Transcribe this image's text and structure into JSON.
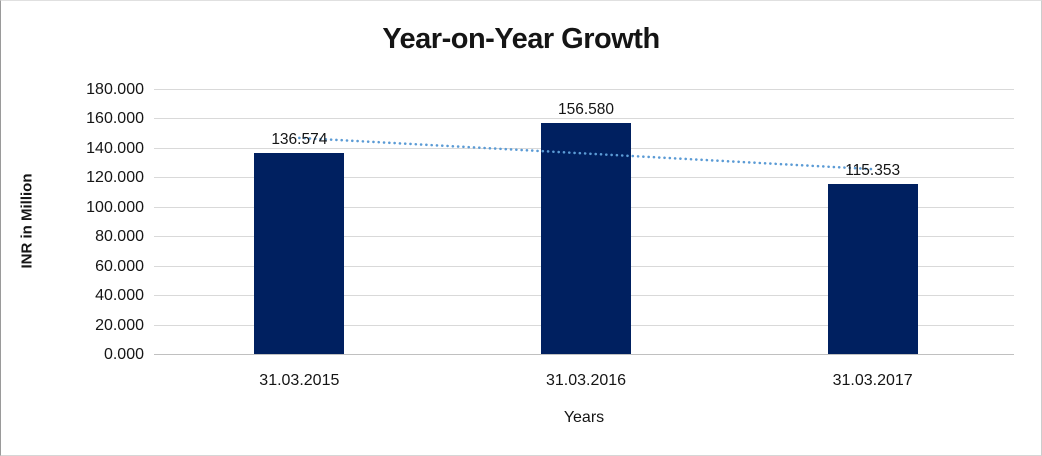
{
  "chart_data": {
    "type": "bar",
    "title": "Year-on-Year Growth",
    "xlabel": "Years",
    "ylabel": "INR in Million",
    "categories": [
      "31.03.2015",
      "31.03.2016",
      "31.03.2017"
    ],
    "values": [
      136.574,
      156.58,
      115.353
    ],
    "data_labels": [
      "136.574",
      "156.580",
      "115.353"
    ],
    "ylim": [
      0,
      180
    ],
    "ytick_step": 20,
    "ytick_labels": [
      "0.000",
      "20.000",
      "40.000",
      "60.000",
      "80.000",
      "100.000",
      "120.000",
      "140.000",
      "160.000",
      "180.000"
    ],
    "grid": true,
    "legend": "none",
    "bar_color": "#002060",
    "gridline_color": "#d9d9d9",
    "axis_line_color": "#c0c0c0",
    "trendline": {
      "type": "linear",
      "style": "dotted",
      "color": "#5b9bd5"
    }
  }
}
